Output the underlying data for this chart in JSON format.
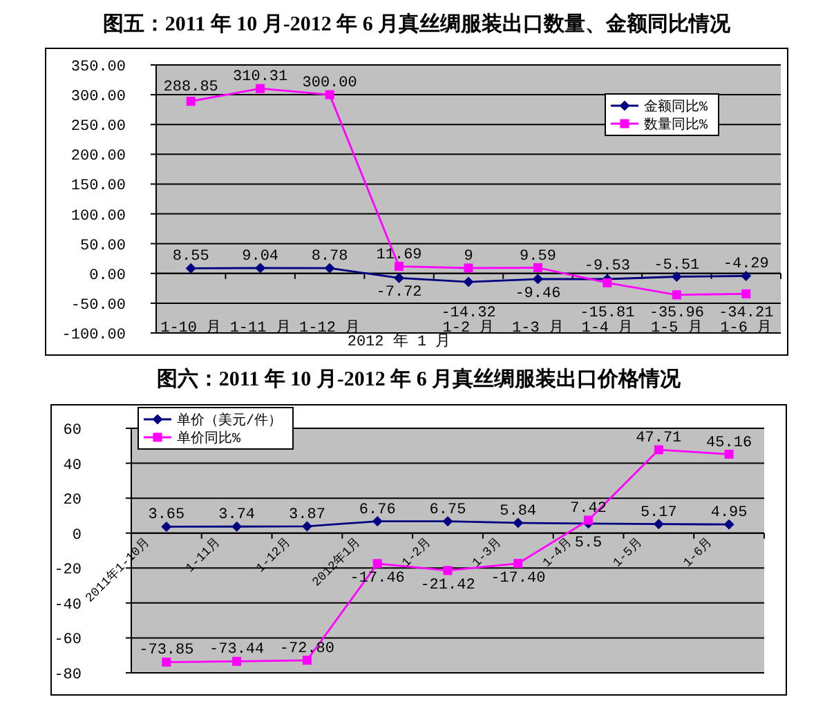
{
  "chart_data": [
    {
      "type": "line",
      "title": "图五：2011 年 10 月-2012 年 6 月真丝绸服装出口数量、金额同比情况",
      "categories": [
        "1-10 月",
        "1-11 月",
        "1-12 月",
        "2012 年 1 月",
        "1-2 月",
        "1-3 月",
        "1-4 月",
        "1-5 月",
        "1-6 月"
      ],
      "series": [
        {
          "name": "金额同比%",
          "color": "#000080",
          "marker": "diamond",
          "values": [
            8.55,
            9.04,
            8.78,
            -7.72,
            -14.32,
            -9.46,
            -9.53,
            -5.51,
            -4.29
          ],
          "value_labels": [
            "8.55",
            "9.04",
            "8.78",
            "-7.72",
            "-14.32",
            "-9.46",
            "-9.53",
            "-5.51",
            "-4.29"
          ]
        },
        {
          "name": "数量同比%",
          "color": "#ff00ff",
          "marker": "square",
          "values": [
            288.85,
            310.31,
            300.0,
            11.69,
            9,
            9.59,
            -15.81,
            -35.96,
            -34.21
          ],
          "value_labels": [
            "288.85",
            "310.31",
            "300.00",
            "11.69",
            "9",
            "9.59",
            "-15.81",
            "-35.96",
            "-34.21"
          ]
        }
      ],
      "ylim": [
        -100,
        350
      ],
      "yticks": [
        {
          "value": -100,
          "label": "-100.00"
        },
        {
          "value": -50,
          "label": "-50.00"
        },
        {
          "value": 0,
          "label": "0.00"
        },
        {
          "value": 50,
          "label": "50.00"
        },
        {
          "value": 100,
          "label": "100.00"
        },
        {
          "value": 150,
          "label": "150.00"
        },
        {
          "value": 200,
          "label": "200.00"
        },
        {
          "value": 250,
          "label": "250.00"
        },
        {
          "value": 300,
          "label": "300.00"
        },
        {
          "value": 350,
          "label": "350.00"
        }
      ],
      "grid": "y",
      "legend": "top right"
    },
    {
      "type": "line",
      "title": "图六：2011 年 10 月-2012 年 6 月真丝绸服装出口价格情况",
      "categories": [
        "2011年1-10月",
        "1-11月",
        "1-12月",
        "2012年1月",
        "1-2月",
        "1-3月",
        "1-4月",
        "1-5月",
        "1-6月"
      ],
      "series": [
        {
          "name": "单价（美元/件）",
          "color": "#000080",
          "marker": "diamond",
          "values": [
            3.65,
            3.74,
            3.87,
            6.76,
            6.75,
            5.84,
            5.5,
            5.17,
            4.95
          ],
          "value_labels": [
            "3.65",
            "3.74",
            "3.87",
            "6.76",
            "6.75",
            "5.84",
            "5.5",
            "5.17",
            "4.95"
          ]
        },
        {
          "name": "单价同比%",
          "color": "#ff00ff",
          "marker": "square",
          "values": [
            -73.85,
            -73.44,
            -72.8,
            -17.46,
            -21.42,
            -17.4,
            7.42,
            47.71,
            45.16
          ],
          "value_labels": [
            "-73.85",
            "-73.44",
            "-72.80",
            "-17.46",
            "-21.42",
            "-17.40",
            "7.42",
            "47.71",
            "45.16"
          ]
        }
      ],
      "ylim": [
        -80,
        60
      ],
      "yticks": [
        -80,
        -60,
        -40,
        -20,
        0,
        20,
        40,
        60
      ],
      "grid": "y",
      "legend": "top left"
    }
  ]
}
